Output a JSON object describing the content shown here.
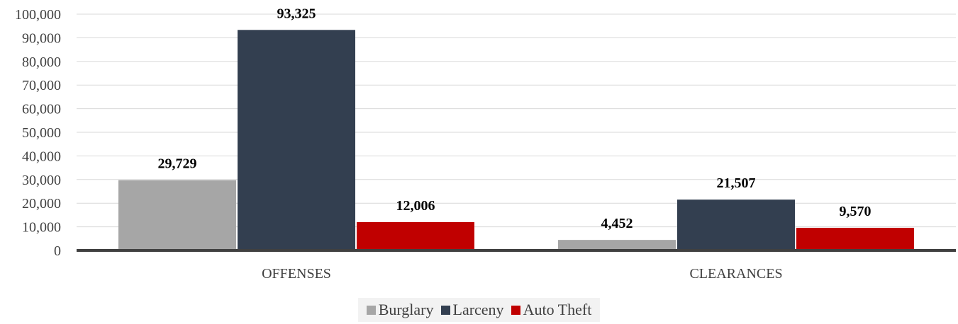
{
  "chart_data": {
    "type": "bar",
    "categories": [
      "OFFENSES",
      "CLEARANCES"
    ],
    "series": [
      {
        "name": "Burglary",
        "values": [
          29729,
          4452
        ],
        "labels": [
          "29,729",
          "4,452"
        ],
        "color": "#a6a6a6"
      },
      {
        "name": "Larceny",
        "values": [
          93325,
          21507
        ],
        "labels": [
          "93,325",
          "21,507"
        ],
        "color": "#333f50"
      },
      {
        "name": "Auto Theft",
        "values": [
          12006,
          9570
        ],
        "labels": [
          "12,006",
          "9,570"
        ],
        "color": "#c00000"
      }
    ],
    "yticks": [
      "0",
      "10,000",
      "20,000",
      "30,000",
      "40,000",
      "50,000",
      "60,000",
      "70,000",
      "80,000",
      "90,000",
      "100,000"
    ],
    "ylim": [
      0,
      100000
    ],
    "grid": true,
    "legend_position": "bottom"
  }
}
